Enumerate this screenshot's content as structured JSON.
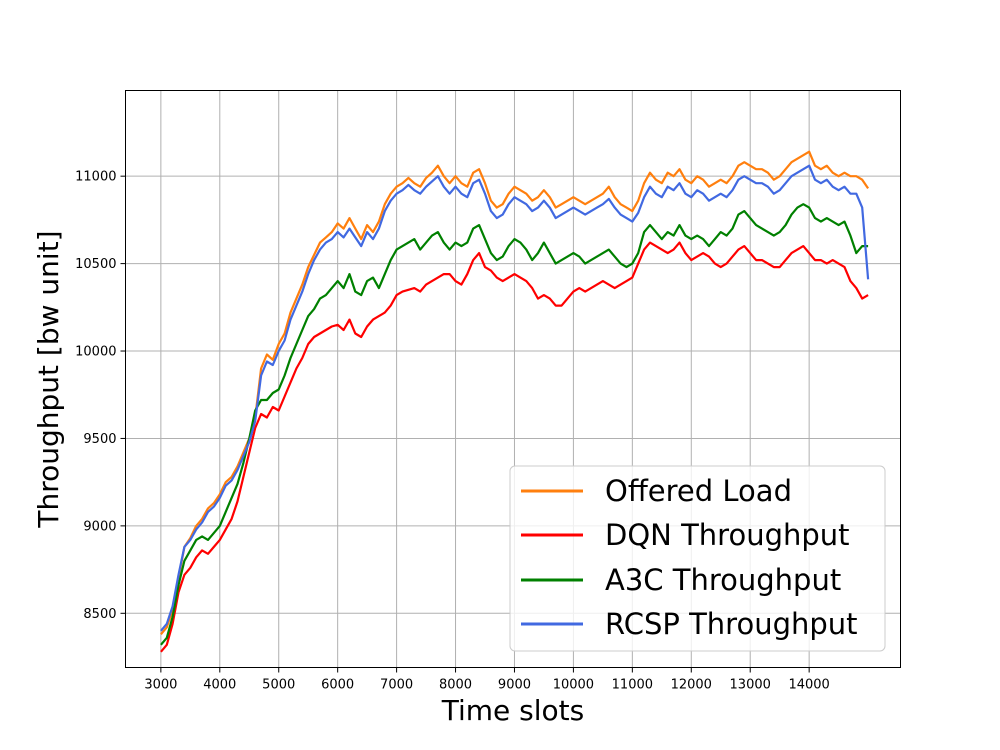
{
  "chart_data": {
    "type": "line",
    "title": "",
    "xlabel": "Time slots",
    "ylabel": "Throughput [bw unit]",
    "xlim": [
      2400,
      15550
    ],
    "ylim": [
      8190,
      11490
    ],
    "xticks": [
      3000,
      4000,
      5000,
      6000,
      7000,
      8000,
      9000,
      10000,
      11000,
      12000,
      13000,
      14000
    ],
    "yticks": [
      8500,
      9000,
      9500,
      10000,
      10500,
      11000
    ],
    "grid": true,
    "legend_position": "lower-right",
    "series": [
      {
        "name": "Offered Load",
        "color": "#ff7f0e",
        "x": [
          3000,
          3100,
          3200,
          3300,
          3400,
          3500,
          3600,
          3700,
          3800,
          3900,
          4000,
          4100,
          4200,
          4300,
          4400,
          4500,
          4600,
          4700,
          4800,
          4900,
          5000,
          5100,
          5200,
          5300,
          5400,
          5500,
          5600,
          5700,
          5800,
          5900,
          6000,
          6100,
          6200,
          6300,
          6400,
          6500,
          6600,
          6700,
          6800,
          6900,
          7000,
          7100,
          7200,
          7300,
          7400,
          7500,
          7600,
          7700,
          7800,
          7900,
          8000,
          8100,
          8200,
          8300,
          8400,
          8500,
          8600,
          8700,
          8800,
          8900,
          9000,
          9100,
          9200,
          9300,
          9400,
          9500,
          9600,
          9700,
          9800,
          9900,
          10000,
          10100,
          10200,
          10300,
          10400,
          10500,
          10600,
          10700,
          10800,
          10900,
          11000,
          11100,
          11200,
          11300,
          11400,
          11500,
          11600,
          11700,
          11800,
          11900,
          12000,
          12100,
          12200,
          12300,
          12400,
          12500,
          12600,
          12700,
          12800,
          12900,
          13000,
          13100,
          13200,
          13300,
          13400,
          13500,
          13600,
          13700,
          13800,
          13900,
          14000,
          14100,
          14200,
          14300,
          14400,
          14500,
          14600,
          14700,
          14800,
          14900,
          15000
        ],
        "y": [
          8380,
          8420,
          8520,
          8700,
          8880,
          8930,
          9000,
          9040,
          9100,
          9130,
          9180,
          9250,
          9280,
          9340,
          9420,
          9500,
          9620,
          9900,
          9980,
          9950,
          10040,
          10100,
          10220,
          10300,
          10380,
          10480,
          10550,
          10620,
          10650,
          10680,
          10730,
          10700,
          10760,
          10700,
          10640,
          10720,
          10680,
          10740,
          10840,
          10900,
          10940,
          10960,
          10990,
          10960,
          10940,
          10990,
          11020,
          11060,
          11000,
          10960,
          11000,
          10960,
          10940,
          11020,
          11040,
          10960,
          10860,
          10820,
          10840,
          10900,
          10940,
          10920,
          10900,
          10860,
          10880,
          10920,
          10880,
          10820,
          10840,
          10860,
          10880,
          10860,
          10840,
          10860,
          10880,
          10900,
          10940,
          10880,
          10840,
          10820,
          10800,
          10860,
          10960,
          11020,
          10980,
          10960,
          11020,
          11000,
          11040,
          10980,
          10960,
          11000,
          10980,
          10940,
          10960,
          10980,
          10960,
          11000,
          11060,
          11080,
          11060,
          11040,
          11040,
          11020,
          10980,
          11000,
          11040,
          11080,
          11100,
          11120,
          11140,
          11060,
          11040,
          11060,
          11020,
          11000,
          11020,
          11000,
          11000,
          10980,
          10930
        ]
      },
      {
        "name": "DQN Throughput",
        "color": "#ff0000",
        "x": [
          3000,
          3100,
          3200,
          3300,
          3400,
          3500,
          3600,
          3700,
          3800,
          3900,
          4000,
          4100,
          4200,
          4300,
          4400,
          4500,
          4600,
          4700,
          4800,
          4900,
          5000,
          5100,
          5200,
          5300,
          5400,
          5500,
          5600,
          5700,
          5800,
          5900,
          6000,
          6100,
          6200,
          6300,
          6400,
          6500,
          6600,
          6700,
          6800,
          6900,
          7000,
          7100,
          7200,
          7300,
          7400,
          7500,
          7600,
          7700,
          7800,
          7900,
          8000,
          8100,
          8200,
          8300,
          8400,
          8500,
          8600,
          8700,
          8800,
          8900,
          9000,
          9100,
          9200,
          9300,
          9400,
          9500,
          9600,
          9700,
          9800,
          9900,
          10000,
          10100,
          10200,
          10300,
          10400,
          10500,
          10600,
          10700,
          10800,
          10900,
          11000,
          11100,
          11200,
          11300,
          11400,
          11500,
          11600,
          11700,
          11800,
          11900,
          12000,
          12100,
          12200,
          12300,
          12400,
          12500,
          12600,
          12700,
          12800,
          12900,
          13000,
          13100,
          13200,
          13300,
          13400,
          13500,
          13600,
          13700,
          13800,
          13900,
          14000,
          14100,
          14200,
          14300,
          14400,
          14500,
          14600,
          14700,
          14800,
          14900,
          15000
        ],
        "y": [
          8280,
          8320,
          8440,
          8620,
          8720,
          8760,
          8820,
          8860,
          8840,
          8880,
          8920,
          8980,
          9040,
          9140,
          9280,
          9420,
          9560,
          9640,
          9620,
          9680,
          9660,
          9740,
          9820,
          9900,
          9960,
          10040,
          10080,
          10100,
          10120,
          10140,
          10150,
          10120,
          10180,
          10100,
          10080,
          10140,
          10180,
          10200,
          10220,
          10260,
          10320,
          10340,
          10350,
          10360,
          10340,
          10380,
          10400,
          10420,
          10440,
          10440,
          10400,
          10380,
          10440,
          10520,
          10560,
          10480,
          10460,
          10420,
          10400,
          10420,
          10440,
          10420,
          10400,
          10360,
          10300,
          10320,
          10300,
          10260,
          10260,
          10300,
          10340,
          10360,
          10340,
          10360,
          10380,
          10400,
          10380,
          10360,
          10380,
          10400,
          10420,
          10500,
          10580,
          10620,
          10600,
          10580,
          10560,
          10580,
          10620,
          10560,
          10520,
          10540,
          10560,
          10540,
          10500,
          10480,
          10500,
          10540,
          10580,
          10600,
          10560,
          10520,
          10520,
          10500,
          10480,
          10480,
          10520,
          10560,
          10580,
          10600,
          10560,
          10520,
          10520,
          10500,
          10520,
          10500,
          10480,
          10400,
          10360,
          10300,
          10320
        ]
      },
      {
        "name": "A3C Throughput",
        "color": "#008000",
        "x": [
          3000,
          3100,
          3200,
          3300,
          3400,
          3500,
          3600,
          3700,
          3800,
          3900,
          4000,
          4100,
          4200,
          4300,
          4400,
          4500,
          4600,
          4700,
          4800,
          4900,
          5000,
          5100,
          5200,
          5300,
          5400,
          5500,
          5600,
          5700,
          5800,
          5900,
          6000,
          6100,
          6200,
          6300,
          6400,
          6500,
          6600,
          6700,
          6800,
          6900,
          7000,
          7100,
          7200,
          7300,
          7400,
          7500,
          7600,
          7700,
          7800,
          7900,
          8000,
          8100,
          8200,
          8300,
          8400,
          8500,
          8600,
          8700,
          8800,
          8900,
          9000,
          9100,
          9200,
          9300,
          9400,
          9500,
          9600,
          9700,
          9800,
          9900,
          10000,
          10100,
          10200,
          10300,
          10400,
          10500,
          10600,
          10700,
          10800,
          10900,
          11000,
          11100,
          11200,
          11300,
          11400,
          11500,
          11600,
          11700,
          11800,
          11900,
          12000,
          12100,
          12200,
          12300,
          12400,
          12500,
          12600,
          12700,
          12800,
          12900,
          13000,
          13100,
          13200,
          13300,
          13400,
          13500,
          13600,
          13700,
          13800,
          13900,
          14000,
          14100,
          14200,
          14300,
          14400,
          14500,
          14600,
          14700,
          14800,
          14900,
          15000
        ],
        "y": [
          8320,
          8360,
          8480,
          8660,
          8800,
          8860,
          8920,
          8940,
          8920,
          8960,
          9000,
          9080,
          9160,
          9240,
          9360,
          9500,
          9660,
          9720,
          9720,
          9760,
          9780,
          9860,
          9960,
          10040,
          10120,
          10200,
          10240,
          10300,
          10320,
          10360,
          10400,
          10360,
          10440,
          10340,
          10320,
          10400,
          10420,
          10360,
          10440,
          10520,
          10580,
          10600,
          10620,
          10640,
          10580,
          10620,
          10660,
          10680,
          10620,
          10580,
          10620,
          10600,
          10620,
          10700,
          10720,
          10640,
          10560,
          10520,
          10540,
          10600,
          10640,
          10620,
          10580,
          10520,
          10560,
          10620,
          10560,
          10500,
          10520,
          10540,
          10560,
          10540,
          10500,
          10520,
          10540,
          10560,
          10580,
          10540,
          10500,
          10480,
          10500,
          10560,
          10680,
          10720,
          10680,
          10640,
          10680,
          10660,
          10720,
          10660,
          10640,
          10660,
          10640,
          10600,
          10640,
          10680,
          10660,
          10700,
          10780,
          10800,
          10760,
          10720,
          10700,
          10680,
          10660,
          10680,
          10720,
          10780,
          10820,
          10840,
          10820,
          10760,
          10740,
          10760,
          10740,
          10720,
          10740,
          10660,
          10560,
          10600,
          10600
        ]
      },
      {
        "name": "RCSP Throughput",
        "color": "#4169e1",
        "x": [
          3000,
          3100,
          3200,
          3300,
          3400,
          3500,
          3600,
          3700,
          3800,
          3900,
          4000,
          4100,
          4200,
          4300,
          4400,
          4500,
          4600,
          4700,
          4800,
          4900,
          5000,
          5100,
          5200,
          5300,
          5400,
          5500,
          5600,
          5700,
          5800,
          5900,
          6000,
          6100,
          6200,
          6300,
          6400,
          6500,
          6600,
          6700,
          6800,
          6900,
          7000,
          7100,
          7200,
          7300,
          7400,
          7500,
          7600,
          7700,
          7800,
          7900,
          8000,
          8100,
          8200,
          8300,
          8400,
          8500,
          8600,
          8700,
          8800,
          8900,
          9000,
          9100,
          9200,
          9300,
          9400,
          9500,
          9600,
          9700,
          9800,
          9900,
          10000,
          10100,
          10200,
          10300,
          10400,
          10500,
          10600,
          10700,
          10800,
          10900,
          11000,
          11100,
          11200,
          11300,
          11400,
          11500,
          11600,
          11700,
          11800,
          11900,
          12000,
          12100,
          12200,
          12300,
          12400,
          12500,
          12600,
          12700,
          12800,
          12900,
          13000,
          13100,
          13200,
          13300,
          13400,
          13500,
          13600,
          13700,
          13800,
          13900,
          14000,
          14100,
          14200,
          14300,
          14400,
          14500,
          14600,
          14700,
          14800,
          14900,
          15000
        ],
        "y": [
          8400,
          8440,
          8540,
          8720,
          8880,
          8920,
          8980,
          9020,
          9080,
          9110,
          9160,
          9230,
          9260,
          9320,
          9400,
          9480,
          9600,
          9860,
          9940,
          9920,
          10000,
          10060,
          10180,
          10260,
          10340,
          10440,
          10520,
          10580,
          10620,
          10640,
          10680,
          10650,
          10700,
          10650,
          10600,
          10680,
          10640,
          10700,
          10800,
          10860,
          10900,
          10920,
          10950,
          10920,
          10900,
          10940,
          10970,
          11000,
          10940,
          10900,
          10940,
          10900,
          10880,
          10960,
          10980,
          10900,
          10800,
          10760,
          10780,
          10840,
          10880,
          10860,
          10840,
          10800,
          10820,
          10860,
          10820,
          10760,
          10780,
          10800,
          10820,
          10800,
          10780,
          10800,
          10820,
          10840,
          10870,
          10820,
          10780,
          10760,
          10740,
          10790,
          10880,
          10940,
          10900,
          10880,
          10940,
          10920,
          10960,
          10900,
          10880,
          10920,
          10900,
          10860,
          10880,
          10900,
          10880,
          10920,
          10980,
          11000,
          10980,
          10960,
          10960,
          10940,
          10900,
          10920,
          10960,
          11000,
          11020,
          11040,
          11060,
          10980,
          10960,
          10980,
          10940,
          10920,
          10940,
          10900,
          10900,
          10820,
          10410
        ]
      }
    ]
  }
}
